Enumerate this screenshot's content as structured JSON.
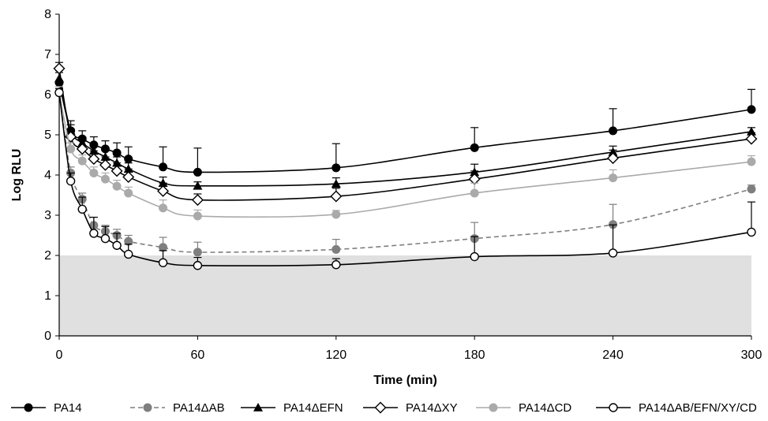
{
  "chart_data": {
    "type": "line",
    "title": "",
    "xlabel": "Time (min)",
    "ylabel": "Log RLU",
    "xlim": [
      0,
      300
    ],
    "ylim": [
      0,
      8
    ],
    "xticks": [
      0,
      60,
      120,
      180,
      240,
      300
    ],
    "yticks": [
      0,
      1,
      2,
      3,
      4,
      5,
      6,
      7,
      8
    ],
    "xtick_labels": [
      "0",
      "60",
      "120",
      "180",
      "240",
      "300"
    ],
    "ytick_labels": [
      "0",
      "1",
      "2",
      "3",
      "4",
      "5",
      "6",
      "7",
      "8"
    ],
    "grid": false,
    "shaded_region": {
      "y_from": 0,
      "y_to": 2,
      "color": "#e0e0e0"
    },
    "legend_position": "bottom",
    "series": [
      {
        "name": "PA14",
        "color": "#000000",
        "marker": "filled-circle",
        "line_style": "solid",
        "x": [
          0,
          5,
          10,
          15,
          20,
          25,
          30,
          45,
          60,
          120,
          180,
          240,
          300
        ],
        "y": [
          6.3,
          5.1,
          4.9,
          4.75,
          4.65,
          4.55,
          4.4,
          4.2,
          4.07,
          4.18,
          4.68,
          5.1,
          5.63
        ],
        "error": [
          0.25,
          0.25,
          0.2,
          0.2,
          0.2,
          0.25,
          0.3,
          0.5,
          0.6,
          0.6,
          0.5,
          0.55,
          0.5
        ]
      },
      {
        "name": "PA14ΔAB",
        "color": "#7f7f7f",
        "marker": "filled-circle",
        "line_style": "dashed",
        "x": [
          0,
          5,
          10,
          15,
          20,
          25,
          30,
          45,
          60,
          120,
          180,
          240,
          300
        ],
        "y": [
          6.05,
          4.05,
          3.4,
          2.75,
          2.6,
          2.5,
          2.35,
          2.2,
          2.08,
          2.15,
          2.42,
          2.77,
          3.65
        ],
        "error": [
          0.1,
          0.15,
          0.15,
          0.2,
          0.15,
          0.15,
          0.15,
          0.25,
          0.25,
          0.25,
          0.4,
          0.5,
          0.1
        ]
      },
      {
        "name": "PA14ΔEFN",
        "color": "#000000",
        "marker": "filled-triangle",
        "line_style": "solid",
        "x": [
          0,
          5,
          10,
          15,
          20,
          25,
          30,
          45,
          60,
          120,
          180,
          240,
          300
        ],
        "y": [
          6.4,
          5.1,
          4.8,
          4.6,
          4.45,
          4.3,
          4.15,
          3.8,
          3.73,
          3.78,
          4.07,
          4.57,
          5.08
        ],
        "error": [
          0.2,
          0.15,
          0.15,
          0.15,
          0.15,
          0.15,
          0.15,
          0.15,
          0.1,
          0.15,
          0.2,
          0.15,
          0.1
        ]
      },
      {
        "name": "PA14ΔXY",
        "color": "#000000",
        "marker": "open-diamond",
        "line_style": "solid",
        "x": [
          0,
          5,
          10,
          15,
          20,
          25,
          30,
          45,
          60,
          120,
          180,
          240,
          300
        ],
        "y": [
          6.65,
          4.95,
          4.65,
          4.4,
          4.25,
          4.1,
          3.95,
          3.6,
          3.38,
          3.47,
          3.9,
          4.42,
          4.9
        ],
        "error": [
          0.15,
          0.2,
          0.2,
          0.2,
          0.2,
          0.2,
          0.2,
          0.2,
          0.15,
          0.2,
          0.2,
          0.2,
          0.15
        ]
      },
      {
        "name": "PA14ΔCD",
        "color": "#aaaaaa",
        "marker": "filled-circle",
        "line_style": "solid",
        "x": [
          0,
          5,
          10,
          15,
          20,
          25,
          30,
          45,
          60,
          120,
          180,
          240,
          300
        ],
        "y": [
          6.05,
          4.65,
          4.35,
          4.05,
          3.9,
          3.72,
          3.55,
          3.18,
          2.98,
          3.02,
          3.55,
          3.93,
          4.33
        ],
        "error": [
          0.15,
          0.15,
          0.15,
          0.15,
          0.15,
          0.15,
          0.15,
          0.2,
          0.15,
          0.1,
          0.25,
          0.2,
          0.15
        ]
      },
      {
        "name": "PA14ΔAB/EFN/XY/CD",
        "color": "#000000",
        "marker": "open-circle",
        "line_style": "solid",
        "x": [
          0,
          5,
          10,
          15,
          20,
          25,
          30,
          45,
          60,
          120,
          180,
          240,
          300
        ],
        "y": [
          6.05,
          3.85,
          3.15,
          2.55,
          2.42,
          2.25,
          2.03,
          1.82,
          1.75,
          1.77,
          1.97,
          2.06,
          2.58
        ],
        "error": [
          0.1,
          0.2,
          0.3,
          0.4,
          0.3,
          0.3,
          0.25,
          0.3,
          0.2,
          0.15,
          0.5,
          0.7,
          0.75
        ]
      }
    ]
  }
}
